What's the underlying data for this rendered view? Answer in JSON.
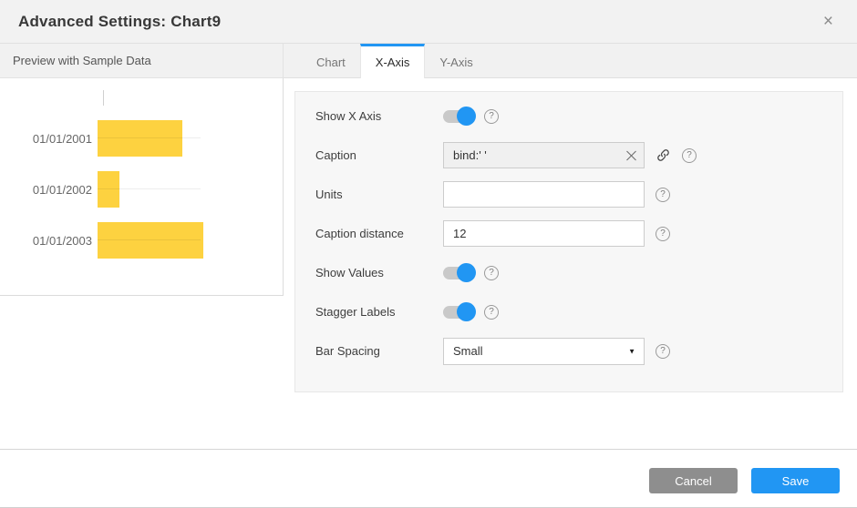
{
  "dialog": {
    "title": "Advanced Settings: Chart9"
  },
  "icons": {
    "close_glyph": "×",
    "help_glyph": "?",
    "dropdown_arrow": "▼"
  },
  "preview": {
    "header": "Preview with Sample Data"
  },
  "chart_data": {
    "type": "bar",
    "orientation": "horizontal",
    "title": "",
    "xlabel": "",
    "ylabel": "",
    "categories": [
      "01/01/2001",
      "01/01/2002",
      "01/01/2003"
    ],
    "values_pct_of_max": [
      80,
      21,
      100
    ],
    "bar_color": "#FDD240",
    "gridlines": true,
    "legend": false
  },
  "tabs": {
    "chart": "Chart",
    "x_axis": "X-Axis",
    "y_axis": "Y-Axis",
    "active": "X-Axis"
  },
  "form": {
    "show_x_axis": {
      "label": "Show X Axis",
      "value": "on"
    },
    "caption": {
      "label": "Caption",
      "value": "bind:' '"
    },
    "units": {
      "label": "Units",
      "value": ""
    },
    "caption_distance": {
      "label": "Caption distance",
      "value": "12"
    },
    "show_values": {
      "label": "Show Values",
      "value": "on"
    },
    "stagger_labels": {
      "label": "Stagger Labels",
      "value": "on"
    },
    "bar_spacing": {
      "label": "Bar Spacing",
      "value": "Small"
    }
  },
  "footer": {
    "cancel": "Cancel",
    "save": "Save"
  },
  "colors": {
    "accent_blue": "#2196F3",
    "bar_yellow": "#FDD240",
    "cancel_gray": "#8E8E8E"
  }
}
